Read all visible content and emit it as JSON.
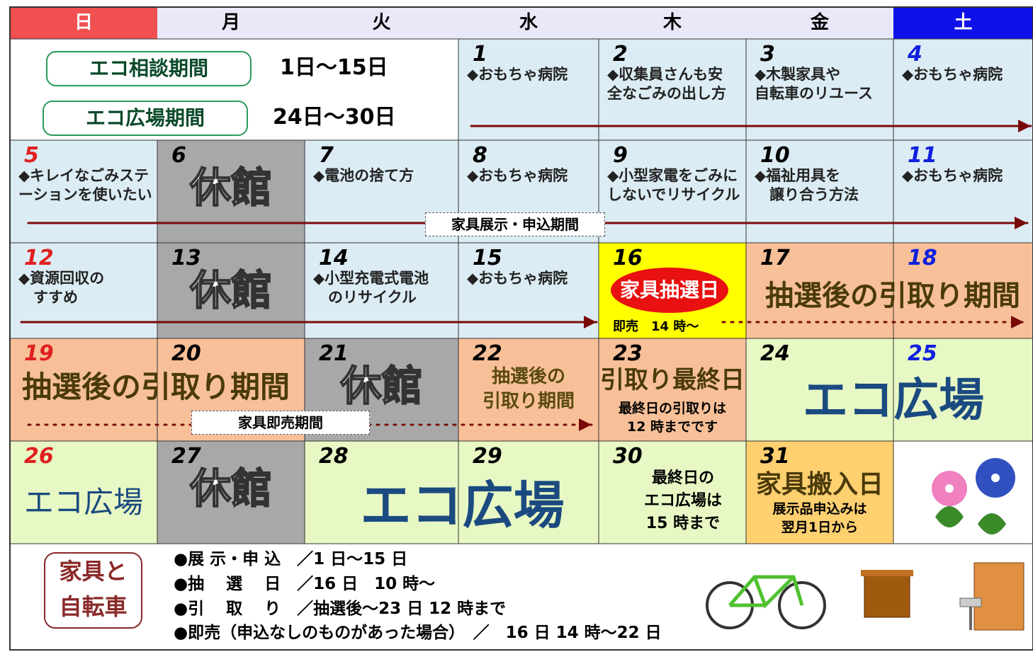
{
  "weekdays": [
    "日",
    "月",
    "火",
    "水",
    "木",
    "金",
    "土"
  ],
  "periods": [
    {
      "label": "エコ相談期間",
      "dates": "1日～15日"
    },
    {
      "label": "エコ広場期間",
      "dates": "24日～30日"
    }
  ],
  "days": [
    "1",
    "2",
    "3",
    "4",
    "5",
    "6",
    "7",
    "8",
    "9",
    "10",
    "11",
    "12",
    "13",
    "14",
    "15",
    "16",
    "17",
    "18",
    "19",
    "20",
    "21",
    "22",
    "23",
    "24",
    "25",
    "26",
    "27",
    "28",
    "29",
    "30",
    "31"
  ],
  "notes": [
    "◆おもちゃ病院",
    "◆収集員さんも安\n全なごみの出し方",
    "◆木製家具や\n自転車のリユース",
    "◆おもちゃ病院",
    "◆キレイなごみステ\nーションを使いたい",
    "◆電池の捨て方",
    "◆おもちゃ病院",
    "◆小型家電をごみに\nしないでリサイクル",
    "◆福祉用具を\n　譲り合う方法",
    "◆おもちゃ病院",
    "◆資源回収の\n　すすめ",
    "◆小型充電式電池\n　のリサイクル",
    "◆おもちゃ病院"
  ],
  "closed": [
    "休館",
    "休館",
    "休館",
    "休館"
  ],
  "banners": {
    "exhibit": "家具展示・申込期間",
    "sale": "家具即売期間"
  },
  "pickup": [
    "抽選後の引取り期間",
    "抽選後の引取り期間",
    "抽選後の\n引取り期間"
  ],
  "lottery": {
    "title": "家具抽選日",
    "sub": "即売　14 時～"
  },
  "final_pickup": {
    "title": "引取り最終日",
    "note": "最終日の引取りは\n12 時までです"
  },
  "eco_plaza": [
    "エコ広場",
    "エコ広場",
    "エコ広場"
  ],
  "last_eco": "最終日の\nエコ広場は\n15 時まで",
  "delivery": {
    "title": "家具搬入日",
    "note": "展示品申込みは\n翌月1日から"
  },
  "footer": {
    "title": "家具と\n自転車",
    "items": [
      "●展 示・申 込　／1 日～15 日",
      "●抽　 選　 日　／16 日　10 時～",
      "●引　 取　 り　／抽選後～23 日 12 時まで",
      "●即売（申込なしのものがあった場合）　／　16 日 14 時～22 日"
    ]
  }
}
